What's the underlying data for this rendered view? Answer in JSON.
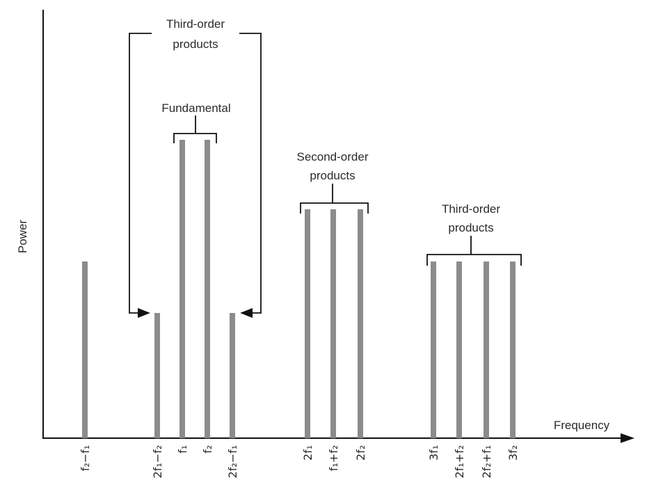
{
  "axes": {
    "y_label": "Power",
    "x_label": "Frequency"
  },
  "frequency_labels": [
    "f₂−f₁",
    "2f₁−f₂",
    "f₁",
    "f₂",
    "2f₂−f₁",
    "2f₁",
    "f₁+f₂",
    "2f₂",
    "3f₁",
    "2f₁+f₂",
    "2f₂+f₁",
    "3f₂"
  ],
  "annotations": {
    "fundamental": "Fundamental",
    "second_order": [
      "Second-order",
      "products"
    ],
    "third_order_near": [
      "Third-order",
      "products"
    ],
    "third_order_far": [
      "Third-order",
      "products"
    ]
  }
}
